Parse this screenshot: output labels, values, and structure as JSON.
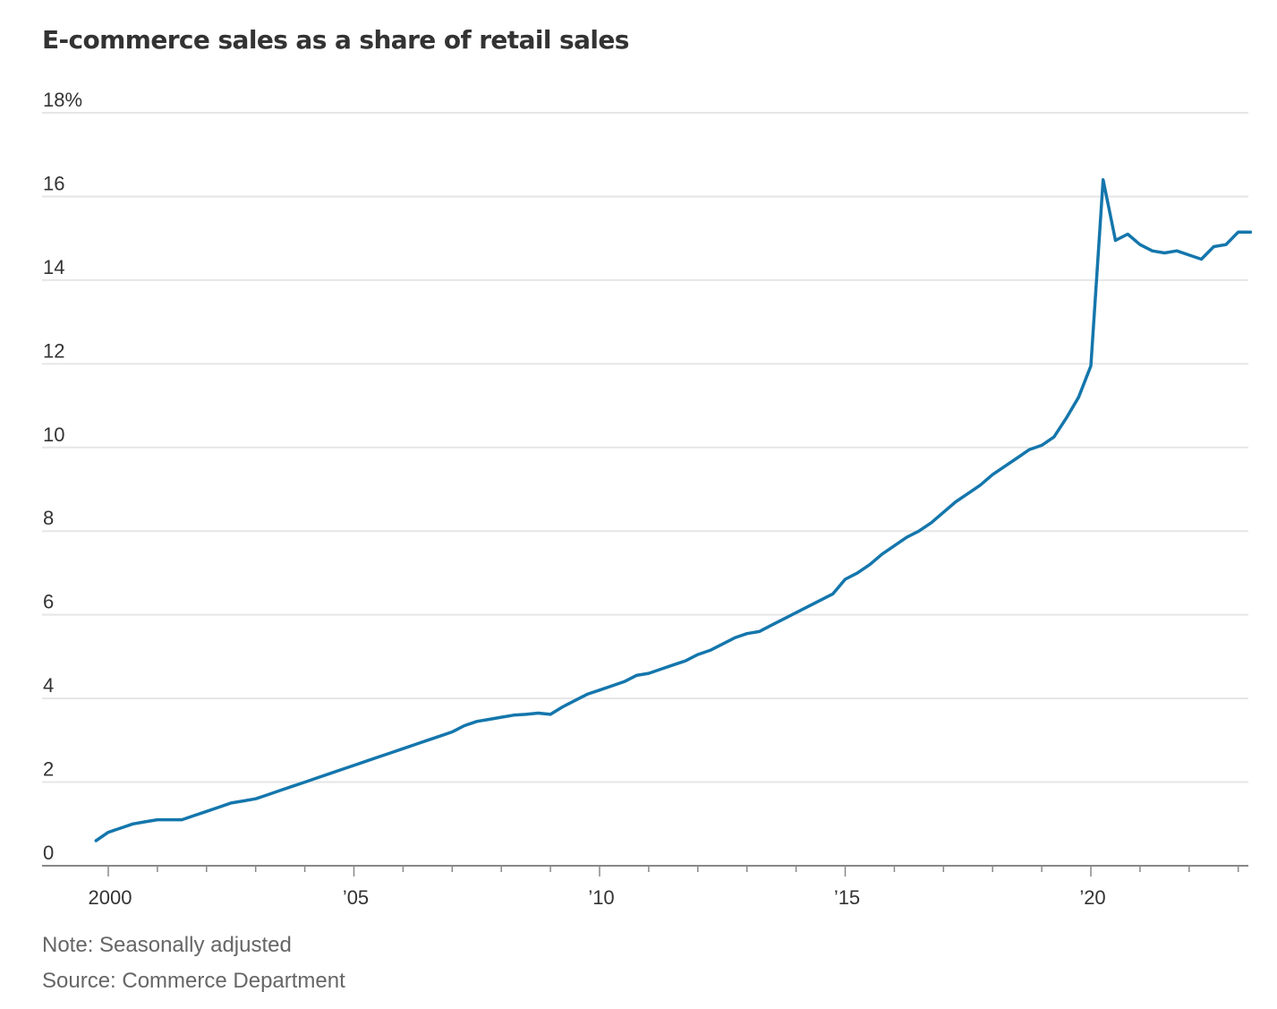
{
  "chart_title": "E-commerce sales as a share of retail sales",
  "note": "Note: Seasonally adjusted",
  "source": "Source: Commerce Department",
  "colors": {
    "line": "#1476ac",
    "grid": "#e6e6e6",
    "axis": "#888888"
  },
  "chart_data": {
    "type": "line",
    "title": "E-commerce sales as a share of retail sales",
    "xlabel": "",
    "ylabel": "",
    "xlim": [
      1999.5,
      2023.75
    ],
    "ylim": [
      0,
      18
    ],
    "grid": true,
    "y_ticks": [
      0,
      2,
      4,
      6,
      8,
      10,
      12,
      14,
      16,
      18
    ],
    "y_tick_labels": [
      "0",
      "2",
      "4",
      "6",
      "8",
      "10",
      "12",
      "14",
      "16",
      "18%"
    ],
    "x_ticks": [
      2000,
      2005,
      2010,
      2015,
      2020
    ],
    "x_tick_labels": [
      "2000",
      "’05",
      "’10",
      "’15",
      "’20"
    ],
    "series": [
      {
        "x": [
          1999.75,
          2000.0,
          2000.25,
          2000.5,
          2000.75,
          2001.0,
          2001.25,
          2001.5,
          2001.75,
          2002.0,
          2002.25,
          2002.5,
          2002.75,
          2003.0,
          2003.25,
          2003.5,
          2003.75,
          2004.0,
          2004.25,
          2004.5,
          2004.75,
          2005.0,
          2005.25,
          2005.5,
          2005.75,
          2006.0,
          2006.25,
          2006.5,
          2006.75,
          2007.0,
          2007.25,
          2007.5,
          2007.75,
          2008.0,
          2008.25,
          2008.5,
          2008.75,
          2009.0,
          2009.25,
          2009.5,
          2009.75,
          2010.0,
          2010.25,
          2010.5,
          2010.75,
          2011.0,
          2011.25,
          2011.5,
          2011.75,
          2012.0,
          2012.25,
          2012.5,
          2012.75,
          2013.0,
          2013.25,
          2013.5,
          2013.75,
          2014.0,
          2014.25,
          2014.5,
          2014.75,
          2015.0,
          2015.25,
          2015.5,
          2015.75,
          2016.0,
          2016.25,
          2016.5,
          2016.75,
          2017.0,
          2017.25,
          2017.5,
          2017.75,
          2018.0,
          2018.25,
          2018.5,
          2018.75,
          2019.0,
          2019.25,
          2019.5,
          2019.75,
          2020.0,
          2020.25,
          2020.5,
          2020.75,
          2021.0,
          2021.25,
          2021.5,
          2021.75,
          2022.0,
          2022.25,
          2022.5,
          2022.75,
          2023.0,
          2023.25
        ],
        "values": [
          0.6,
          0.8,
          0.9,
          1.0,
          1.05,
          1.1,
          1.1,
          1.1,
          1.2,
          1.3,
          1.4,
          1.5,
          1.55,
          1.6,
          1.7,
          1.8,
          1.9,
          2.0,
          2.1,
          2.2,
          2.3,
          2.4,
          2.5,
          2.6,
          2.7,
          2.8,
          2.9,
          3.0,
          3.1,
          3.2,
          3.35,
          3.45,
          3.5,
          3.55,
          3.6,
          3.62,
          3.65,
          3.62,
          3.8,
          3.95,
          4.1,
          4.2,
          4.3,
          4.4,
          4.55,
          4.6,
          4.7,
          4.8,
          4.9,
          5.05,
          5.15,
          5.3,
          5.45,
          5.55,
          5.6,
          5.75,
          5.9,
          6.05,
          6.2,
          6.35,
          6.5,
          6.85,
          7.0,
          7.2,
          7.45,
          7.65,
          7.85,
          8.0,
          8.2,
          8.45,
          8.7,
          8.9,
          9.1,
          9.35,
          9.55,
          9.75,
          9.95,
          10.05,
          10.25,
          10.7,
          11.2,
          11.95,
          16.4,
          14.95,
          15.1,
          14.85,
          14.7,
          14.65,
          14.7,
          14.6,
          14.5,
          14.8,
          14.85,
          15.15,
          15.15
        ]
      }
    ]
  }
}
